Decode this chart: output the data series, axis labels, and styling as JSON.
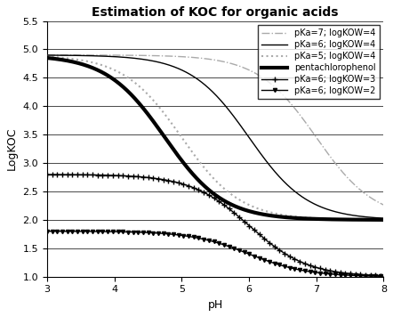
{
  "title": "Estimation of KOC for organic acids",
  "xlabel": "pH",
  "ylabel": "LogKOC",
  "xlim": [
    3,
    8
  ],
  "ylim": [
    1.0,
    5.5
  ],
  "yticks": [
    1.0,
    1.5,
    2.0,
    2.5,
    3.0,
    3.5,
    4.0,
    4.5,
    5.0,
    5.5
  ],
  "xticks": [
    3,
    4,
    5,
    6,
    7,
    8
  ],
  "curves": [
    {
      "label": "pKa=7; logKOW=4",
      "pKa": 7,
      "logKOC_neutral": 4.9,
      "logKOC_ion": 2.0,
      "linestyle": "-.",
      "color": "#aaaaaa",
      "linewidth": 1.0,
      "marker": "None",
      "zorder": 3
    },
    {
      "label": "pKa=6; logKOW=4",
      "pKa": 6,
      "logKOC_neutral": 4.9,
      "logKOC_ion": 2.0,
      "linestyle": "-",
      "color": "#000000",
      "linewidth": 1.0,
      "marker": "None",
      "zorder": 4
    },
    {
      "label": "pKa=5; logKOW=4",
      "pKa": 5,
      "logKOC_neutral": 4.9,
      "logKOC_ion": 2.0,
      "linestyle": ":",
      "color": "#aaaaaa",
      "linewidth": 1.5,
      "marker": "None",
      "zorder": 3
    },
    {
      "label": "pentachlorophenol",
      "pKa": 4.75,
      "logKOC_neutral": 4.9,
      "logKOC_ion": 2.0,
      "linestyle": "-",
      "color": "#000000",
      "linewidth": 3.0,
      "marker": "None",
      "zorder": 5
    },
    {
      "label": "pKa=6; logKOW=3",
      "pKa": 6,
      "logKOC_neutral": 2.8,
      "logKOC_ion": 1.0,
      "linestyle": "-",
      "color": "#000000",
      "linewidth": 1.0,
      "marker": "+",
      "markersize": 4,
      "markevery": 15,
      "zorder": 3
    },
    {
      "label": "pKa=6; logKOW=2",
      "pKa": 6,
      "logKOC_neutral": 1.8,
      "logKOC_ion": 1.0,
      "linestyle": "-",
      "color": "#000000",
      "linewidth": 1.0,
      "marker": "v",
      "markersize": 3,
      "markevery": 15,
      "zorder": 3
    }
  ],
  "background_color": "#ffffff",
  "legend_fontsize": 7,
  "title_fontsize": 10,
  "grid_color": "#000000",
  "grid_linewidth": 0.5
}
